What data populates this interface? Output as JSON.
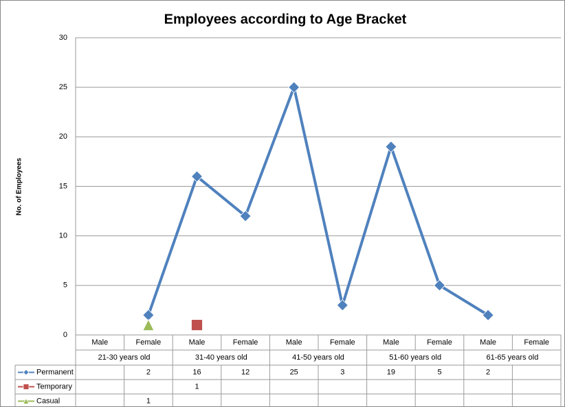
{
  "chart_data": {
    "type": "line",
    "title": "Employees according to Age Bracket",
    "y_label": "No. of Employees",
    "categories": [
      "Male",
      "Female",
      "Male",
      "Female",
      "Male",
      "Female",
      "Male",
      "Female",
      "Male",
      "Female"
    ],
    "groups": [
      "21-30 years old",
      "31-40 years old",
      "41-50 years old",
      "51-60 years old",
      "61-65 years old"
    ],
    "series": [
      {
        "name": "Permanent",
        "color": "#4f81bd",
        "marker": "diamond",
        "line": true,
        "values": [
          null,
          2,
          16,
          12,
          25,
          3,
          19,
          5,
          2,
          null
        ]
      },
      {
        "name": "Temporary",
        "color": "#c0504d",
        "marker": "square",
        "line": false,
        "values": [
          null,
          null,
          1,
          null,
          null,
          null,
          null,
          null,
          null,
          null
        ]
      },
      {
        "name": "Casual",
        "color": "#9bbb59",
        "marker": "triangle",
        "line": false,
        "values": [
          null,
          1,
          null,
          null,
          null,
          null,
          null,
          null,
          null,
          null
        ]
      }
    ],
    "ylim": [
      0,
      30
    ],
    "yticks": [
      0,
      5,
      10,
      15,
      20,
      25,
      30
    ],
    "grid": true,
    "data_table": true
  }
}
